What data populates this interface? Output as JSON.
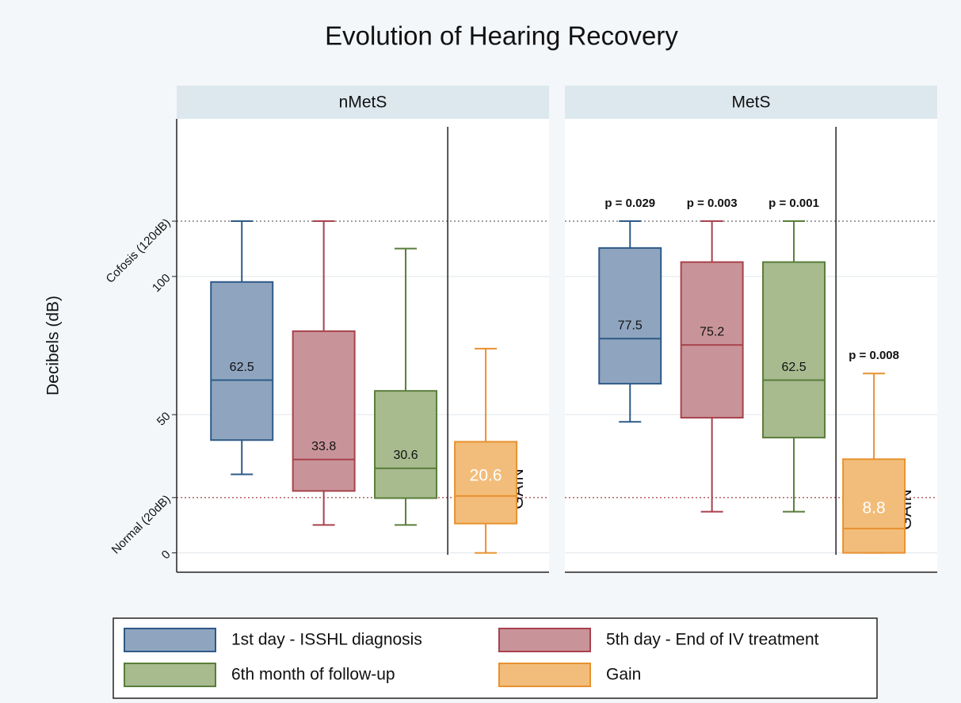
{
  "chart_data": {
    "type": "box",
    "title": "Evolution of Hearing Recovery",
    "y_label": "Decibels (dB)",
    "categories": [
      "nMetS",
      "MetS"
    ],
    "group_label": "GAIN",
    "ylim": [
      -7,
      157
    ],
    "yticks": [
      0,
      {
        "value": 20,
        "label": "Normal (20dB)"
      },
      50,
      100,
      {
        "value": 120,
        "label": "Cofosis (120dB)"
      }
    ],
    "grid": true,
    "legend": "bottom",
    "series": [
      {
        "name": "1st day - ISSHL diagnosis",
        "color": "#2e5a87",
        "fill": "#8fa5bf",
        "whislo": [
          28.4,
          47.4
        ],
        "q1": [
          40.8,
          61.2
        ],
        "median": [
          62.5,
          77.5
        ],
        "q3": [
          98.0,
          110.3
        ],
        "whishi": [
          120,
          120
        ],
        "p_labels": [
          null,
          "p = 0.029"
        ]
      },
      {
        "name": "5th day - End of IV treatment",
        "color": "#a8424d",
        "fill": "#c99499",
        "whislo": [
          10.1,
          14.9
        ],
        "q1": [
          22.4,
          48.9
        ],
        "median": [
          33.8,
          75.2
        ],
        "q3": [
          80.2,
          105.2
        ],
        "whishi": [
          120,
          120
        ],
        "p_labels": [
          null,
          "p = 0.003"
        ]
      },
      {
        "name": "6th month of follow-up",
        "color": "#5a7d3a",
        "fill": "#a7bb8f",
        "whislo": [
          10.1,
          14.9
        ],
        "q1": [
          19.8,
          41.7
        ],
        "median": [
          30.6,
          62.5
        ],
        "q3": [
          58.6,
          105.2
        ],
        "whishi": [
          110.1,
          120
        ],
        "p_labels": [
          null,
          "p = 0.001"
        ]
      },
      {
        "name": "Gain",
        "color": "#e8912f",
        "fill": "#f2bd7a",
        "whislo": [
          0,
          0
        ],
        "q1": [
          10.6,
          0
        ],
        "median": [
          20.6,
          8.8
        ],
        "q3": [
          40.2,
          33.9
        ],
        "whishi": [
          73.9,
          64.9
        ],
        "p_labels": [
          null,
          "p = 0.008"
        ]
      }
    ]
  }
}
